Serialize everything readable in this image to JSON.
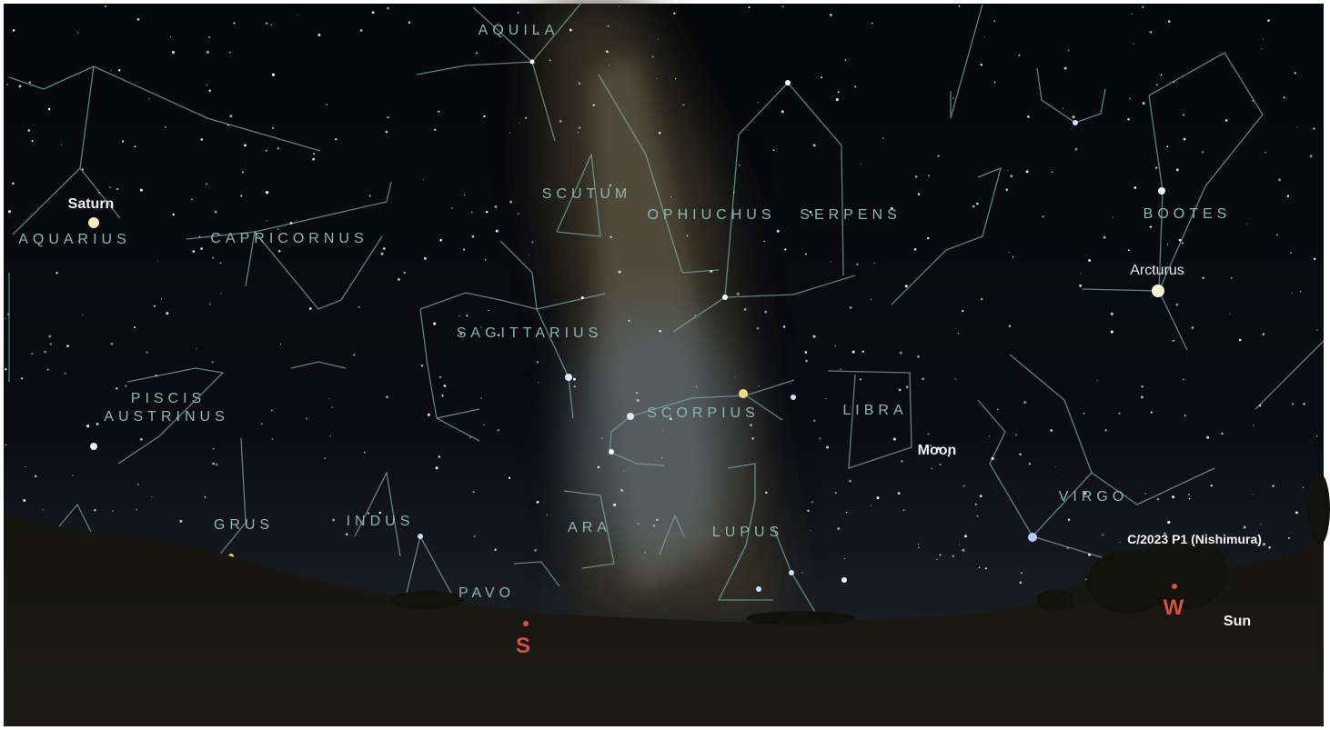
{
  "sky": {
    "constellations": [
      "AQUILA",
      "SCUTUM",
      "OPHIUCHUS",
      "SERPENS",
      "BOOTES",
      "AQUARIUS",
      "CAPRICORNUS",
      "SAGITTARIUS",
      "SCORPIUS",
      "LIBRA",
      "PISCIS",
      "AUSTRINUS",
      "VIRGO",
      "GRUS",
      "INDUS",
      "ARA",
      "LUPUS",
      "PAVO"
    ],
    "objects": [
      "Saturn",
      "Arcturus",
      "Moon",
      "C/2023 P1 (Nishimura)",
      "Sun"
    ],
    "cardinals": [
      "S",
      "W"
    ]
  }
}
